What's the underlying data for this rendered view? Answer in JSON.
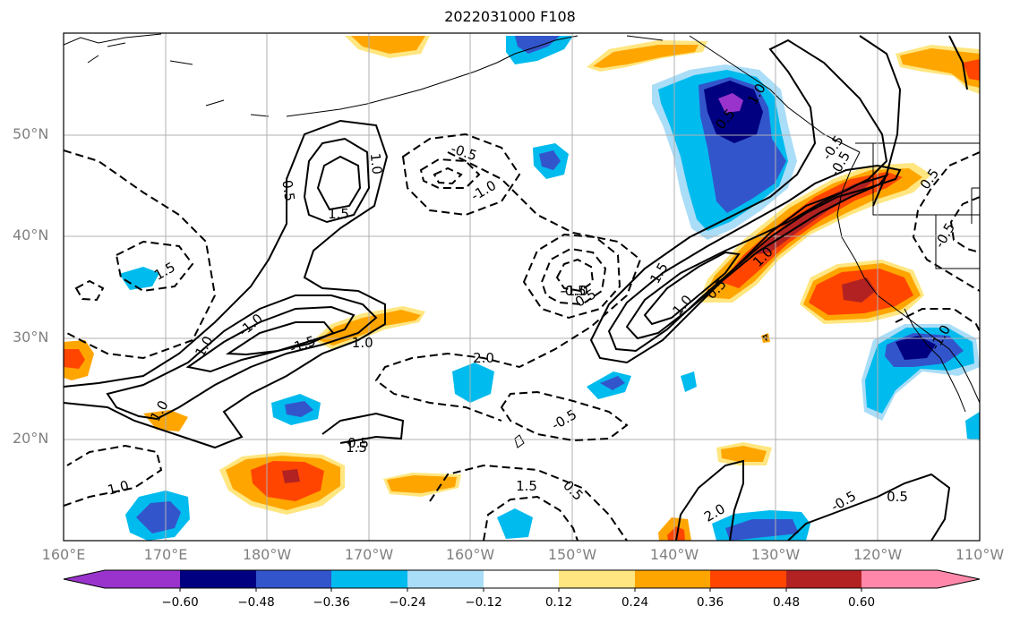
{
  "title": "2022031000 F108",
  "lat_labels": [
    "50°N",
    "40°N",
    "30°N",
    "20°N"
  ],
  "lon_labels": [
    "160°E",
    "170°E",
    "180°W",
    "170°W",
    "160°W",
    "150°W",
    "140°W",
    "130°W",
    "120°W",
    "110°W"
  ],
  "colorbar": {
    "ticks": [
      "−0.60",
      "−0.48",
      "−0.36",
      "−0.24",
      "−0.12",
      "0.12",
      "0.24",
      "0.36",
      "0.48",
      "0.60"
    ],
    "colors": [
      "#9933cc",
      "#000080",
      "#3355cc",
      "#00bbee",
      "#aaddf7",
      "#ffffff",
      "#ffe680",
      "#ffa500",
      "#ff4500",
      "#b22222",
      "#ff88aa"
    ]
  },
  "contour_labels": [
    "0.5",
    "1.0",
    "1.5",
    "-0.5",
    "-1.0",
    "1.5",
    "1.0",
    "-1.0",
    "-1.5",
    "1.0",
    "1.5",
    "2.0",
    "-0.5",
    "-1.0",
    "0.5",
    "1.5",
    "1.0",
    "0.5",
    "1.0",
    "-0.5",
    "0.5",
    "2.0",
    "1.0",
    "1.5",
    "0.5",
    "0.5",
    "-0.5",
    "-1.0",
    "-0.5",
    "-1.0",
    "0.5",
    "1.0",
    "-0.5",
    "0.5",
    "-0.5"
  ]
}
